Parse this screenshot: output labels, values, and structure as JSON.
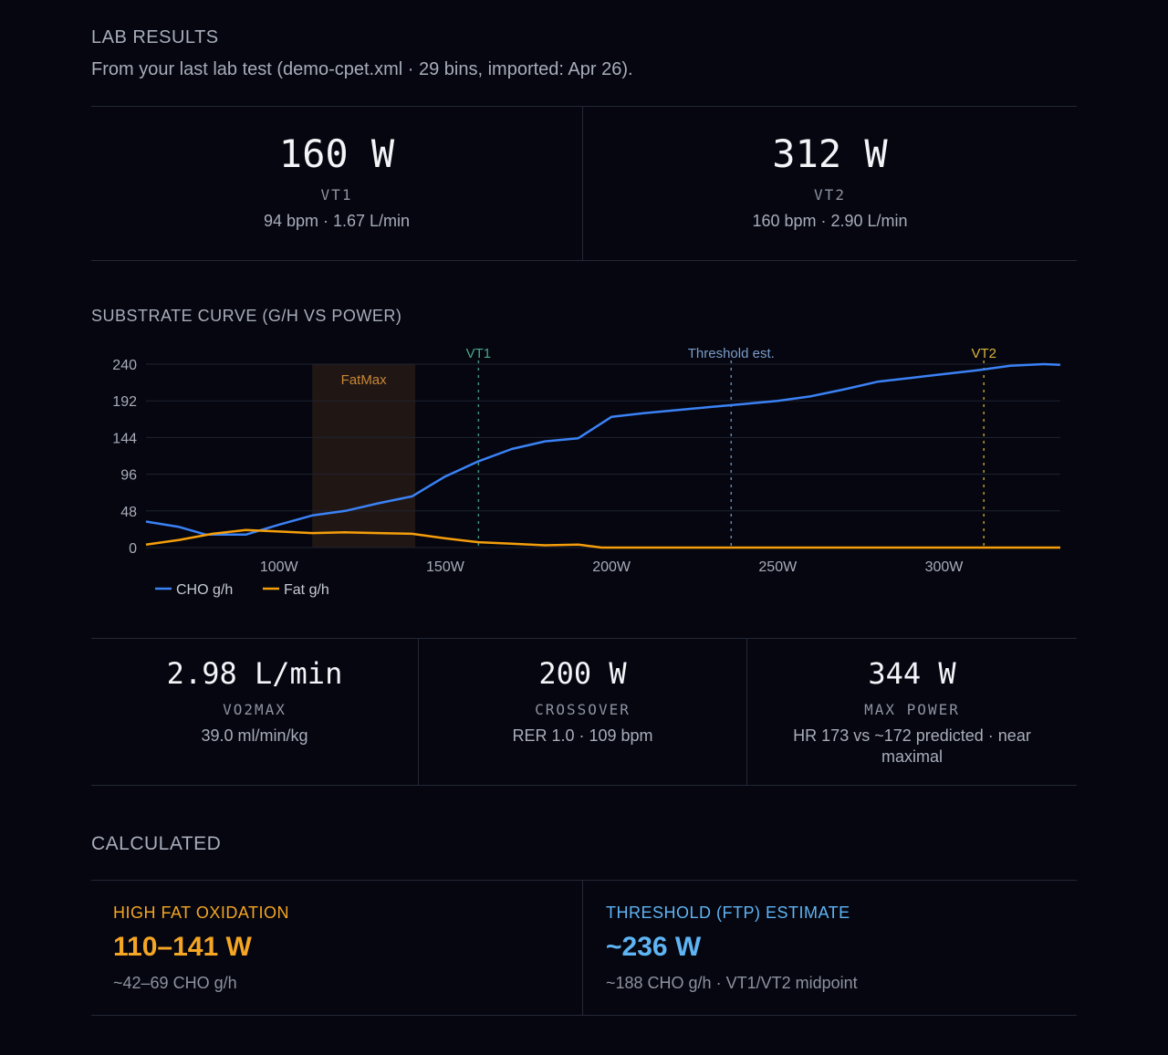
{
  "header": {
    "title": "LAB RESULTS",
    "subtitle": "From your last lab test (demo-cpet.xml · 29 bins, imported: Apr 26)."
  },
  "thresholds": [
    {
      "value": "160 W",
      "label": "VT1",
      "detail": "94 bpm · 1.67 L/min"
    },
    {
      "value": "312 W",
      "label": "VT2",
      "detail": "160 bpm · 2.90 L/min"
    }
  ],
  "chart_section": {
    "title": "SUBSTRATE CURVE (G/H VS POWER)"
  },
  "chart_data": {
    "type": "line",
    "xlabel": "",
    "ylabel": "",
    "xlim": [
      60,
      335
    ],
    "ylim": [
      0,
      240
    ],
    "x_ticks": [
      "100W",
      "150W",
      "200W",
      "250W",
      "300W"
    ],
    "x_tick_values": [
      100,
      150,
      200,
      250,
      300
    ],
    "y_ticks": [
      "240",
      "192",
      "144",
      "96",
      "48",
      "0"
    ],
    "y_tick_values": [
      240,
      192,
      144,
      96,
      48,
      0
    ],
    "grid": true,
    "legend_placement": "bottom-left",
    "band": {
      "label": "FatMax",
      "x0": 110,
      "x1": 141,
      "color": "#e8a33d"
    },
    "vlines": [
      {
        "label": "VT1",
        "x": 160,
        "color": "#4aa88c"
      },
      {
        "label": "Threshold est.",
        "x": 236,
        "color": "#7a9cc9"
      },
      {
        "label": "VT2",
        "x": 312,
        "color": "#d9b43a"
      }
    ],
    "series": [
      {
        "name": "CHO g/h",
        "color": "#3b82f6",
        "points": [
          [
            60,
            34
          ],
          [
            70,
            27
          ],
          [
            78,
            17
          ],
          [
            85,
            17
          ],
          [
            90,
            17
          ],
          [
            100,
            30
          ],
          [
            110,
            42
          ],
          [
            120,
            48
          ],
          [
            130,
            58
          ],
          [
            140,
            67
          ],
          [
            150,
            93
          ],
          [
            160,
            113
          ],
          [
            170,
            129
          ],
          [
            180,
            139
          ],
          [
            190,
            143
          ],
          [
            200,
            171
          ],
          [
            210,
            176
          ],
          [
            220,
            180
          ],
          [
            230,
            184
          ],
          [
            240,
            188
          ],
          [
            250,
            192
          ],
          [
            260,
            198
          ],
          [
            270,
            207
          ],
          [
            280,
            217
          ],
          [
            290,
            222
          ],
          [
            300,
            227
          ],
          [
            310,
            232
          ],
          [
            320,
            238
          ],
          [
            330,
            240
          ],
          [
            335,
            239
          ]
        ]
      },
      {
        "name": "Fat g/h",
        "color": "#f59e0b",
        "points": [
          [
            60,
            4
          ],
          [
            70,
            10
          ],
          [
            80,
            18
          ],
          [
            90,
            23
          ],
          [
            100,
            21
          ],
          [
            110,
            19
          ],
          [
            120,
            20
          ],
          [
            130,
            19
          ],
          [
            140,
            18
          ],
          [
            150,
            12
          ],
          [
            160,
            7
          ],
          [
            170,
            5
          ],
          [
            180,
            3
          ],
          [
            190,
            4
          ],
          [
            197,
            0
          ],
          [
            200,
            0
          ],
          [
            335,
            0
          ]
        ]
      }
    ]
  },
  "metrics": [
    {
      "value": "2.98 L/min",
      "label": "VO2MAX",
      "detail": "39.0 ml/min/kg"
    },
    {
      "value": "200 W",
      "label": "CROSSOVER",
      "detail": "RER 1.0 · 109 bpm"
    },
    {
      "value": "344 W",
      "label": "MAX POWER",
      "detail": "HR 173 vs ~172 predicted · near maximal"
    }
  ],
  "calculated": {
    "title": "CALCULATED",
    "cards": [
      {
        "title": "HIGH FAT OXIDATION",
        "value": "110–141 W",
        "detail": "~42–69 CHO g/h",
        "color": "#f5a524"
      },
      {
        "title": "THRESHOLD (FTP) ESTIMATE",
        "value": "~236 W",
        "detail": "~188 CHO g/h · VT1/VT2 midpoint",
        "color": "#5fb4f4"
      }
    ]
  }
}
